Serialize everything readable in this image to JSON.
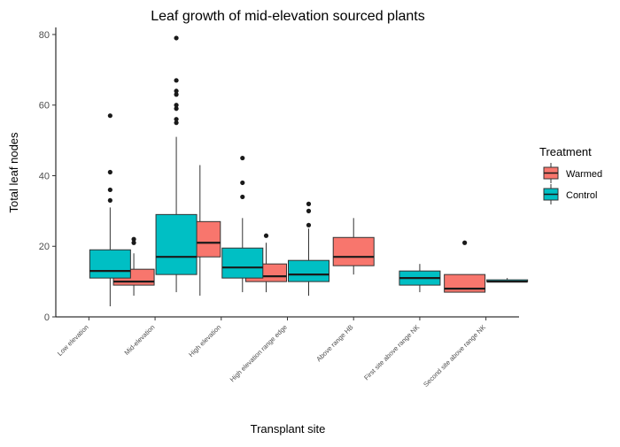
{
  "chart_data": {
    "type": "boxplot",
    "title": "Leaf growth of mid-elevation sourced plants",
    "xlabel": "Transplant site",
    "ylabel": "Total leaf nodes",
    "ylim": [
      0,
      82
    ],
    "yticks": [
      0,
      20,
      40,
      60,
      80
    ],
    "grid": false,
    "legend": {
      "title": "Treatment",
      "position": "right",
      "entries": [
        {
          "name": "Warmed",
          "color": "#F8766D"
        },
        {
          "name": "Control",
          "color": "#00BFC4"
        }
      ]
    },
    "categories": [
      "Low elevation",
      "Mid-elevation",
      "High elevation",
      "High elevation range edge",
      "Above range HB",
      "First site above range NK",
      "Second site above range NK"
    ],
    "series": [
      {
        "name": "Warmed",
        "color": "#F8766D",
        "boxes": [
          null,
          {
            "min": 6,
            "q1": 9,
            "median": 10,
            "q3": 13.5,
            "max": 18,
            "outliers": [
              21,
              22
            ]
          },
          {
            "min": 6,
            "q1": 17,
            "median": 21,
            "q3": 27,
            "max": 43,
            "outliers": []
          },
          {
            "min": 7,
            "q1": 10,
            "median": 11.5,
            "q3": 15,
            "max": 21,
            "outliers": [
              23
            ]
          },
          {
            "min": 12,
            "q1": 14.5,
            "median": 17,
            "q3": 22.5,
            "max": 28,
            "outliers": []
          },
          null,
          {
            "min": 7,
            "q1": 7,
            "median": 8,
            "q3": 12,
            "max": 12,
            "outliers": [
              21
            ]
          }
        ]
      },
      {
        "name": "Control",
        "color": "#00BFC4",
        "boxes": [
          {
            "min": 3,
            "q1": 11,
            "median": 13,
            "q3": 19,
            "max": 31,
            "outliers": [
              33,
              36,
              41,
              57
            ]
          },
          {
            "min": 7,
            "q1": 12,
            "median": 17,
            "q3": 29,
            "max": 51,
            "outliers": [
              55,
              56,
              59,
              60,
              63,
              64,
              67,
              79
            ]
          },
          {
            "min": 7,
            "q1": 11,
            "median": 14,
            "q3": 19.5,
            "max": 28,
            "outliers": [
              34,
              38,
              45
            ]
          },
          {
            "min": 6,
            "q1": 10,
            "median": 12,
            "q3": 16,
            "max": 25,
            "outliers": [
              26,
              30,
              32
            ]
          },
          null,
          {
            "min": 7,
            "q1": 9,
            "median": 11,
            "q3": 13,
            "max": 15,
            "outliers": []
          },
          {
            "min": 10,
            "q1": 10,
            "median": 10,
            "q3": 10.5,
            "max": 11,
            "outliers": []
          }
        ]
      }
    ],
    "single_box_categories": [
      4,
      5
    ]
  }
}
